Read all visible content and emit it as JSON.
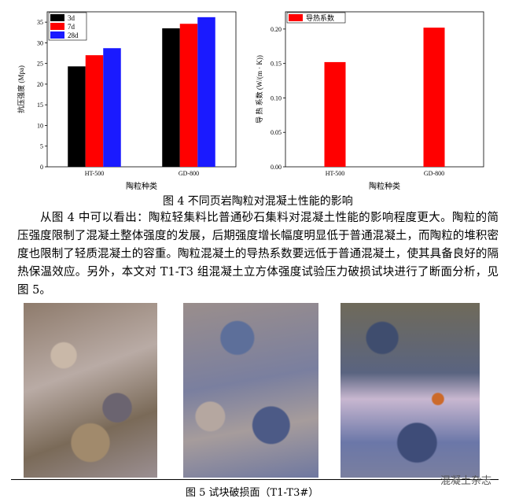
{
  "chart_data": [
    {
      "type": "bar",
      "categories": [
        "HT-500",
        "GD-800"
      ],
      "series": [
        {
          "name": "3d",
          "color": "#000000",
          "values": [
            24.3,
            33.5
          ]
        },
        {
          "name": "7d",
          "color": "#ff0000",
          "values": [
            27.0,
            34.6
          ]
        },
        {
          "name": "28d",
          "color": "#1a1aff",
          "values": [
            28.7,
            36.2
          ]
        }
      ],
      "ylim": [
        0,
        37.5
      ],
      "yticks": [
        0,
        5,
        10,
        15,
        20,
        25,
        30,
        35
      ],
      "y_label": "抗压强度 (Mpa)",
      "x_label": "陶粒种类",
      "legend": "upper-left"
    },
    {
      "type": "bar",
      "categories": [
        "HT-500",
        "GD-800"
      ],
      "series": [
        {
          "name": "导热系数",
          "color": "#ff0000",
          "values": [
            0.152,
            0.202
          ]
        }
      ],
      "ylim": [
        0,
        0.225
      ],
      "yticks": [
        {
          "value": 0,
          "label": "0.00"
        },
        {
          "value": 0.05,
          "label": "0.05"
        },
        {
          "value": 0.1,
          "label": "0.10"
        },
        {
          "value": 0.15,
          "label": "0.15"
        },
        {
          "value": 0.2,
          "label": "0.20"
        }
      ],
      "y_label": "导 热 系数 (W/(m · K))",
      "x_label": "陶粒种类",
      "legend": "upper-left"
    }
  ],
  "figure4_caption": "图 4  不同页岩陶粒对混凝土性能的影响",
  "paragraph": "从图 4 中可以看出：陶粒轻集料比普通砂石集料对混凝土性能的影响程度更大。陶粒的简压强度限制了混凝土整体强度的发展，后期强度增长幅度明显低于普通混凝土，而陶粒的堆积密度也限制了轻质混凝土的容重。陶粒混凝土的导热系数要远低于普通混凝土，使其具备良好的隔热保温效应。另外，本文对 T1-T3 组混凝土立方体强度试验压力破损试块进行了断面分析，见图 5。",
  "figure5_caption": "图 5  试块破损面（T1-T3#）",
  "watermark": "混凝土杂志"
}
